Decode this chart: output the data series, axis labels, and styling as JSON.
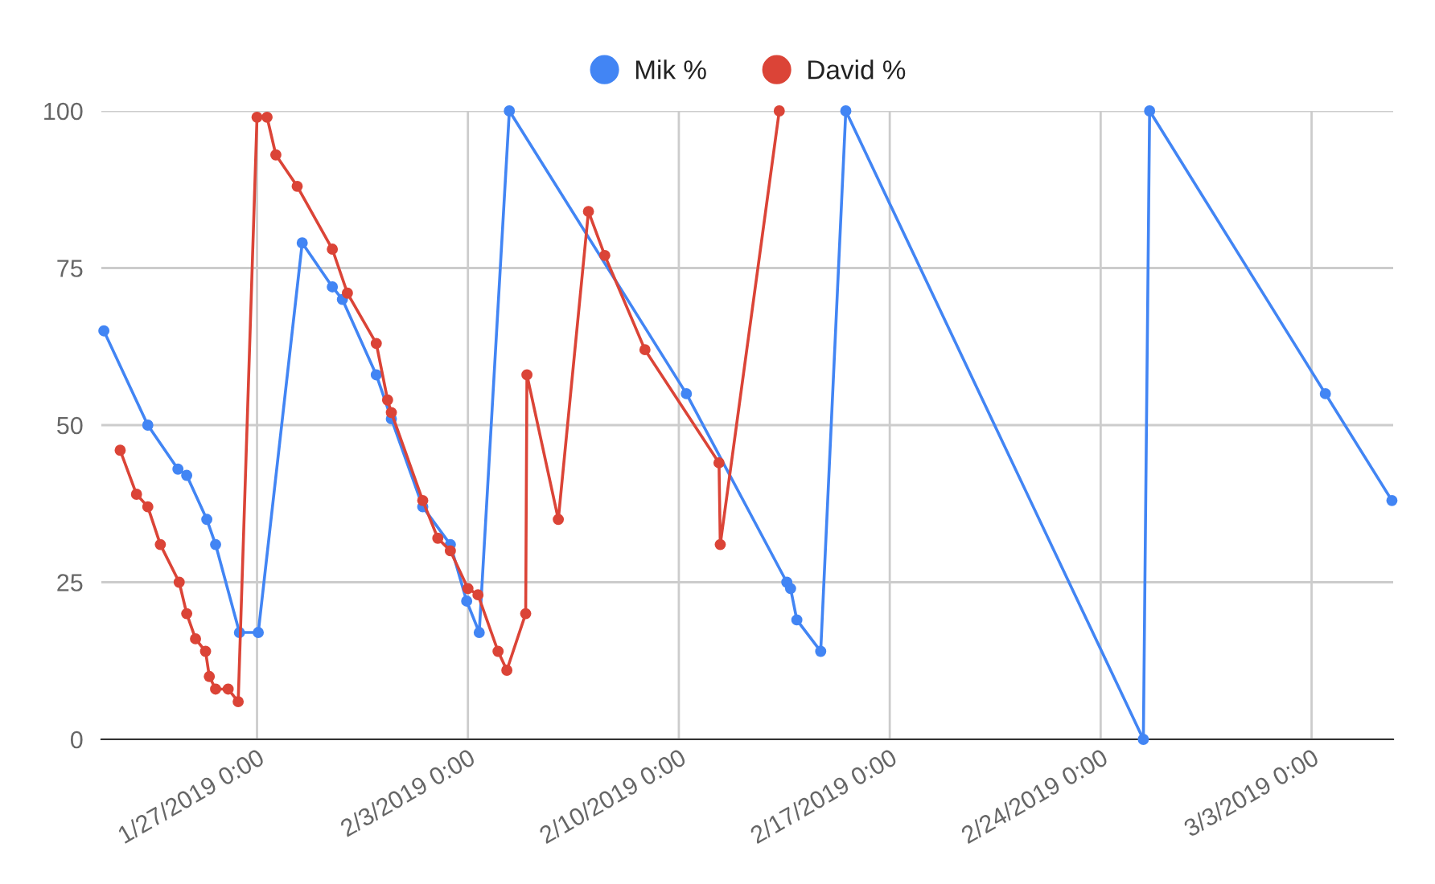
{
  "chart_data": {
    "type": "line",
    "legend": "top",
    "grid": true,
    "marker": "circle",
    "line_style": "solid",
    "xlim": [
      "2019-01-21T20:00",
      "2019-03-05T17:00"
    ],
    "xticks": [
      {
        "value": "2019-01-27",
        "label": "1/27/2019 0:00"
      },
      {
        "value": "2019-02-03",
        "label": "2/3/2019 0:00"
      },
      {
        "value": "2019-02-10",
        "label": "2/10/2019 0:00"
      },
      {
        "value": "2019-02-17",
        "label": "2/17/2019 0:00"
      },
      {
        "value": "2019-02-24",
        "label": "2/24/2019 0:00"
      },
      {
        "value": "2019-03-03",
        "label": "3/3/2019 0:00"
      }
    ],
    "ylim": [
      0,
      100
    ],
    "yticks": [
      0,
      25,
      50,
      75,
      100
    ],
    "series": [
      {
        "name": "Mik %",
        "color": "#4285f4",
        "x": [
          "2019-01-21T22:00",
          "2019-01-23T09:00",
          "2019-01-24T09:00",
          "2019-01-24T16:00",
          "2019-01-25T08:00",
          "2019-01-25T15:00",
          "2019-01-26T10:00",
          "2019-01-27T01:00",
          "2019-01-28T12:00",
          "2019-01-29T12:00",
          "2019-01-29T20:00",
          "2019-01-30T23:00",
          "2019-01-31T11:00",
          "2019-02-01T12:00",
          "2019-02-02T10:00",
          "2019-02-02T23:00",
          "2019-02-03T09:00",
          "2019-02-04T09:00",
          "2019-02-10T06:00",
          "2019-02-13T14:00",
          "2019-02-13T17:00",
          "2019-02-13T22:00",
          "2019-02-14T17:00",
          "2019-02-15T13:00",
          "2019-02-25T10:00",
          "2019-02-25T15:00",
          "2019-03-03T11:00",
          "2019-03-05T16:00"
        ],
        "values": [
          65,
          50,
          43,
          42,
          35,
          31,
          17,
          17,
          79,
          72,
          70,
          58,
          51,
          37,
          31,
          22,
          17,
          100,
          55,
          25,
          24,
          19,
          14,
          100,
          0,
          100,
          55,
          38
        ]
      },
      {
        "name": "David %",
        "color": "#db4437",
        "x": [
          "2019-01-22T11:00",
          "2019-01-23T00:00",
          "2019-01-23T09:00",
          "2019-01-23T19:00",
          "2019-01-24T10:00",
          "2019-01-24T16:00",
          "2019-01-24T23:00",
          "2019-01-25T07:00",
          "2019-01-25T10:00",
          "2019-01-25T15:00",
          "2019-01-26T01:00",
          "2019-01-26T09:00",
          "2019-01-27T00:00",
          "2019-01-27T08:00",
          "2019-01-27T15:00",
          "2019-01-28T08:00",
          "2019-01-29T12:00",
          "2019-01-30T00:00",
          "2019-01-30T23:00",
          "2019-01-31T08:00",
          "2019-01-31T11:00",
          "2019-02-01T12:00",
          "2019-02-02T00:00",
          "2019-02-02T10:00",
          "2019-02-03T00:00",
          "2019-02-03T08:00",
          "2019-02-04T00:00",
          "2019-02-04T07:00",
          "2019-02-04T22:00",
          "2019-02-04T23:00",
          "2019-02-06T00:00",
          "2019-02-07T00:00",
          "2019-02-07T13:00",
          "2019-02-08T21:00",
          "2019-02-11T08:00",
          "2019-02-11T09:00",
          "2019-02-13T08:00"
        ],
        "values": [
          46,
          39,
          37,
          31,
          25,
          20,
          16,
          14,
          10,
          8,
          8,
          6,
          99,
          99,
          93,
          88,
          78,
          71,
          63,
          54,
          52,
          38,
          32,
          30,
          24,
          23,
          14,
          11,
          20,
          58,
          35,
          84,
          77,
          62,
          44,
          31,
          100
        ]
      }
    ]
  }
}
